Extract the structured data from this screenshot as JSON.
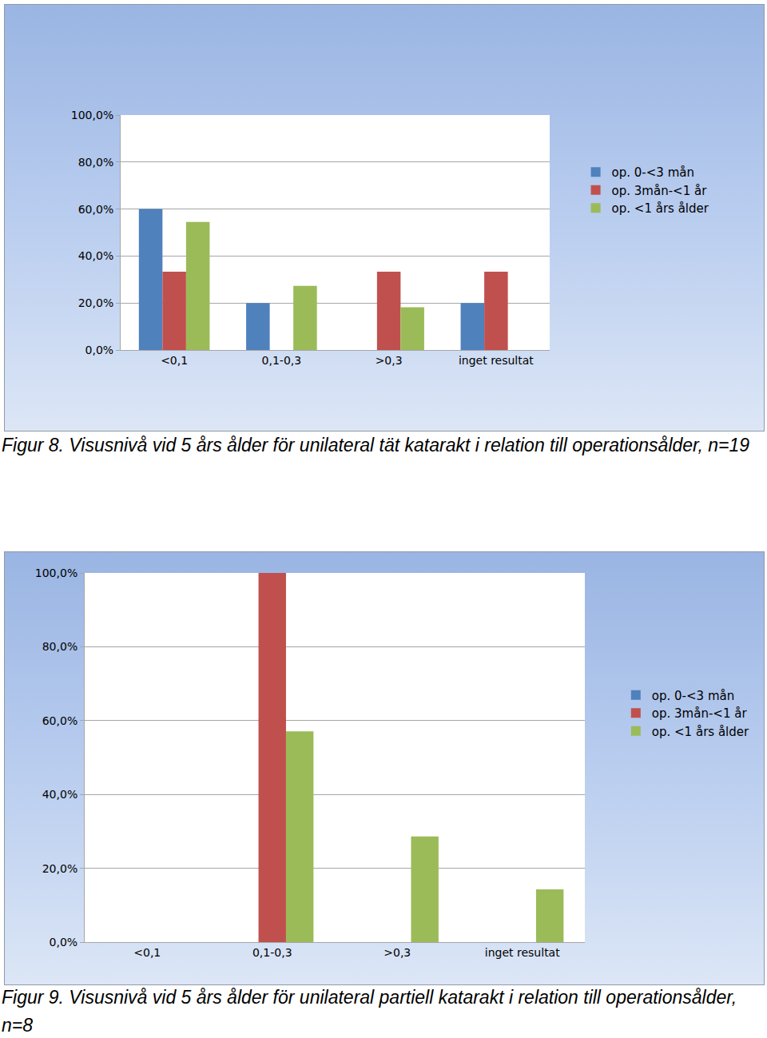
{
  "chart_data": [
    {
      "type": "bar",
      "title": "Figur 8. Visusnivå vid 5 års ålder för unilateral tät katarakt i relation till operationsålder, n=19",
      "categories": [
        "<0,1",
        "0,1-0,3",
        ">0,3",
        "inget resultat"
      ],
      "series": [
        {
          "name": "op. 0-<3 mån",
          "color": "#4f81bd",
          "values": [
            60,
            20,
            0,
            20
          ]
        },
        {
          "name": "op. 3mån-<1 år",
          "color": "#c0504d",
          "values": [
            33.3,
            0,
            33.3,
            33.3
          ]
        },
        {
          "name": "op. <1 års ålder",
          "color": "#9bbb59",
          "values": [
            54.5,
            27.3,
            18.2,
            0
          ]
        }
      ],
      "ylim": [
        0,
        100
      ],
      "yticks": [
        {
          "value": 0,
          "label": "0,0%"
        },
        {
          "value": 20,
          "label": "20,0%"
        },
        {
          "value": 40,
          "label": "40,0%"
        },
        {
          "value": 60,
          "label": "60,0%"
        },
        {
          "value": 80,
          "label": "80,0%"
        },
        {
          "value": 100,
          "label": "100,0%"
        }
      ],
      "grid": true,
      "legend": "right"
    },
    {
      "type": "bar",
      "title": "Figur 9. Visusnivå vid 5 års ålder för unilateral partiell katarakt i relation till operationsålder, n=8",
      "categories": [
        "<0,1",
        "0,1-0,3",
        ">0,3",
        "inget resultat"
      ],
      "series": [
        {
          "name": "op. 0-<3 mån",
          "color": "#4f81bd",
          "values": [
            0,
            0,
            0,
            0
          ]
        },
        {
          "name": "op. 3mån-<1 år",
          "color": "#c0504d",
          "values": [
            0,
            100,
            0,
            0
          ]
        },
        {
          "name": "op. <1 års ålder",
          "color": "#9bbb59",
          "values": [
            0,
            57.1,
            28.6,
            14.3
          ]
        }
      ],
      "ylim": [
        0,
        100
      ],
      "yticks": [
        {
          "value": 0,
          "label": "0,0%"
        },
        {
          "value": 20,
          "label": "20,0%"
        },
        {
          "value": 40,
          "label": "40,0%"
        },
        {
          "value": 60,
          "label": "60,0%"
        },
        {
          "value": 80,
          "label": "80,0%"
        },
        {
          "value": 100,
          "label": "100,0%"
        }
      ],
      "grid": true,
      "legend": "right"
    }
  ]
}
